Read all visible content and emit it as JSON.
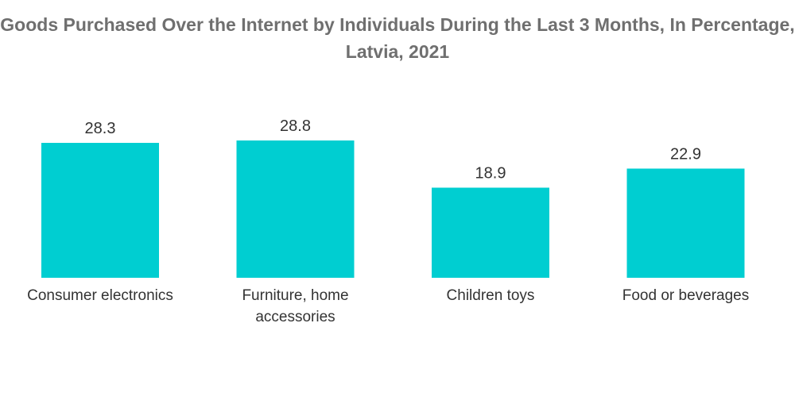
{
  "chart_data": {
    "type": "bar",
    "title": "Goods Purchased Over the Internet by Individuals During the Last 3 Months, In Percentage, Latvia, 2021",
    "title_lines": [
      "Goods Purchased Over the Internet by Individuals During the Last 3 Months, In Percentage,",
      "Latvia, 2021"
    ],
    "categories": [
      "Consumer electronics",
      "Furniture, home accessories",
      "Children toys",
      "Food or beverages"
    ],
    "category_lines": [
      [
        "Consumer electronics"
      ],
      [
        "Furniture, home",
        "accessories"
      ],
      [
        "Children toys"
      ],
      [
        "Food or beverages"
      ]
    ],
    "values": [
      28.3,
      28.8,
      18.9,
      22.9
    ],
    "value_labels": [
      "28.3",
      "28.8",
      "18.9",
      "22.9"
    ],
    "xlabel": "",
    "ylabel": "",
    "ylim": [
      0,
      28.8
    ],
    "grid": false,
    "legend": "none",
    "bar_color": "#00CED1"
  }
}
